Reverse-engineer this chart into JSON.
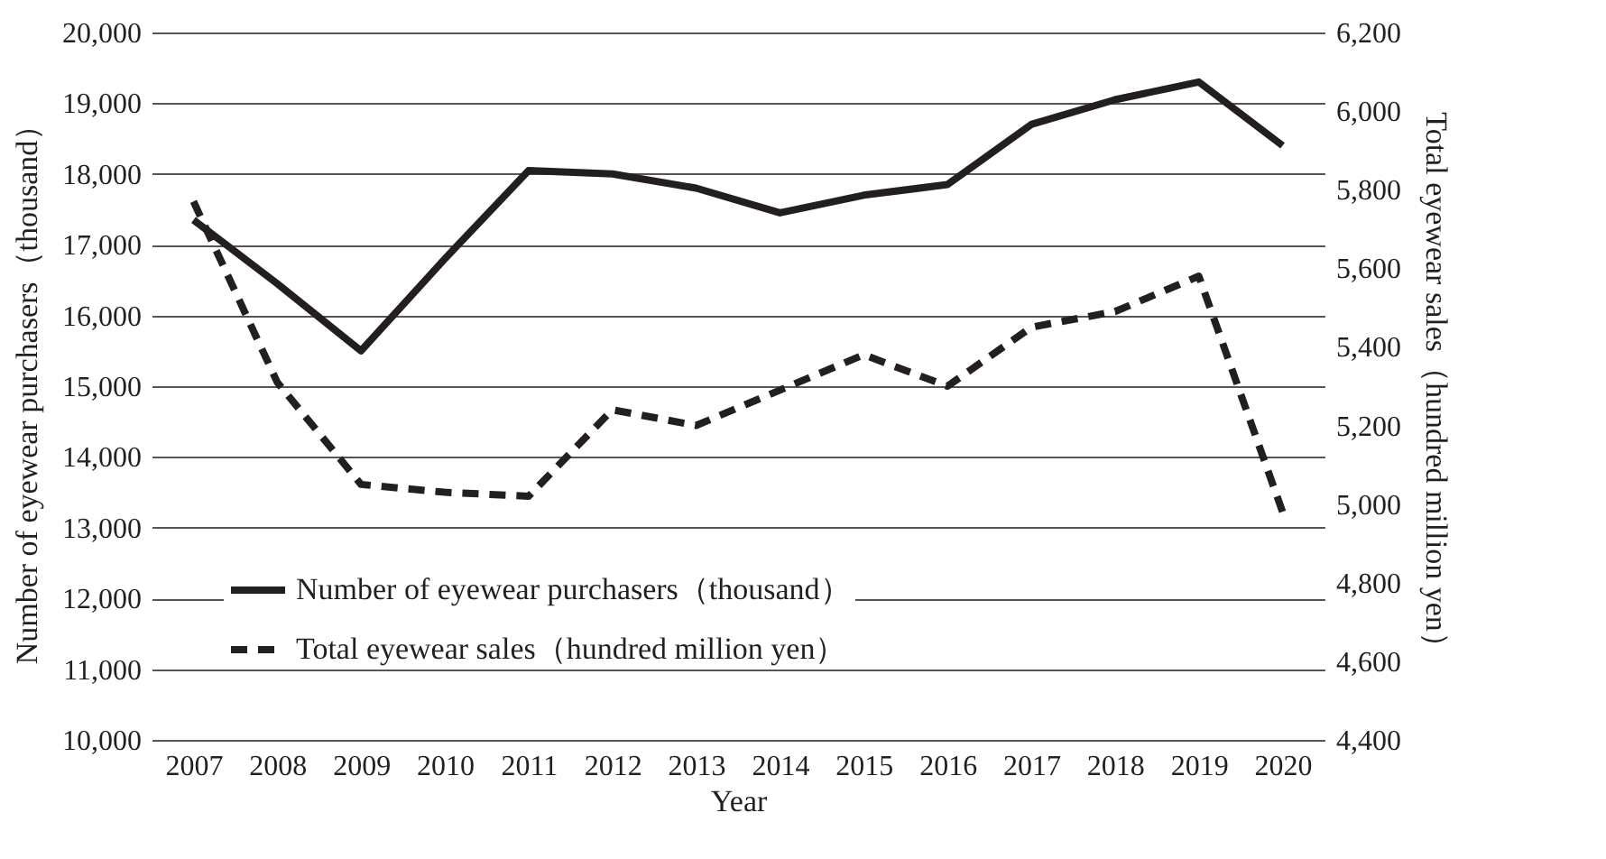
{
  "chart_data": {
    "type": "line",
    "xlabel": "Year",
    "ylabel": "Number of eyewear purchasers（thousand）",
    "y2label": "Total eyewear sales（hundred million yen）",
    "categories": [
      "2007",
      "2008",
      "2009",
      "2010",
      "2011",
      "2012",
      "2013",
      "2014",
      "2015",
      "2016",
      "2017",
      "2018",
      "2019",
      "2020"
    ],
    "series": [
      {
        "name": "Number of eyewear purchasers（thousand）",
        "color": "#231f20",
        "line_style": "solid",
        "values": [
          17350,
          16450,
          15500,
          16800,
          18050,
          18000,
          17800,
          17450,
          17700,
          17850,
          18700,
          19050,
          19300,
          18400
        ]
      },
      {
        "name": "Total eyewear sales（hundred million yen）",
        "color": "#231f20",
        "line_style": "dashed",
        "axis": "y2",
        "values": [
          5770,
          5310,
          5050,
          5030,
          5020,
          5240,
          5200,
          5290,
          5380,
          5300,
          5450,
          5490,
          5580,
          4980
        ]
      }
    ],
    "ylim": [
      10000,
      20000
    ],
    "yticks": [
      {
        "value": 10000,
        "label": "10,000"
      },
      {
        "value": 11000,
        "label": "11,000"
      },
      {
        "value": 12000,
        "label": "12,000"
      },
      {
        "value": 13000,
        "label": "13,000"
      },
      {
        "value": 14000,
        "label": "14,000"
      },
      {
        "value": 15000,
        "label": "15,000"
      },
      {
        "value": 16000,
        "label": "16,000"
      },
      {
        "value": 17000,
        "label": "17,000"
      },
      {
        "value": 18000,
        "label": "18,000"
      },
      {
        "value": 19000,
        "label": "19,000"
      },
      {
        "value": 20000,
        "label": "20,000"
      }
    ],
    "y2lim": [
      4400,
      6200
    ],
    "y2ticks": [
      {
        "value": 4400,
        "label": "4,400"
      },
      {
        "value": 4600,
        "label": "4,600"
      },
      {
        "value": 4800,
        "label": "4,800"
      },
      {
        "value": 5000,
        "label": "5,000"
      },
      {
        "value": 5200,
        "label": "5,200"
      },
      {
        "value": 5400,
        "label": "5,400"
      },
      {
        "value": 5600,
        "label": "5,600"
      },
      {
        "value": 5800,
        "label": "5,800"
      },
      {
        "value": 6000,
        "label": "6,000"
      },
      {
        "value": 6200,
        "label": "6,200"
      }
    ],
    "grid": "y",
    "legend": "bottom left",
    "marker": "none"
  }
}
